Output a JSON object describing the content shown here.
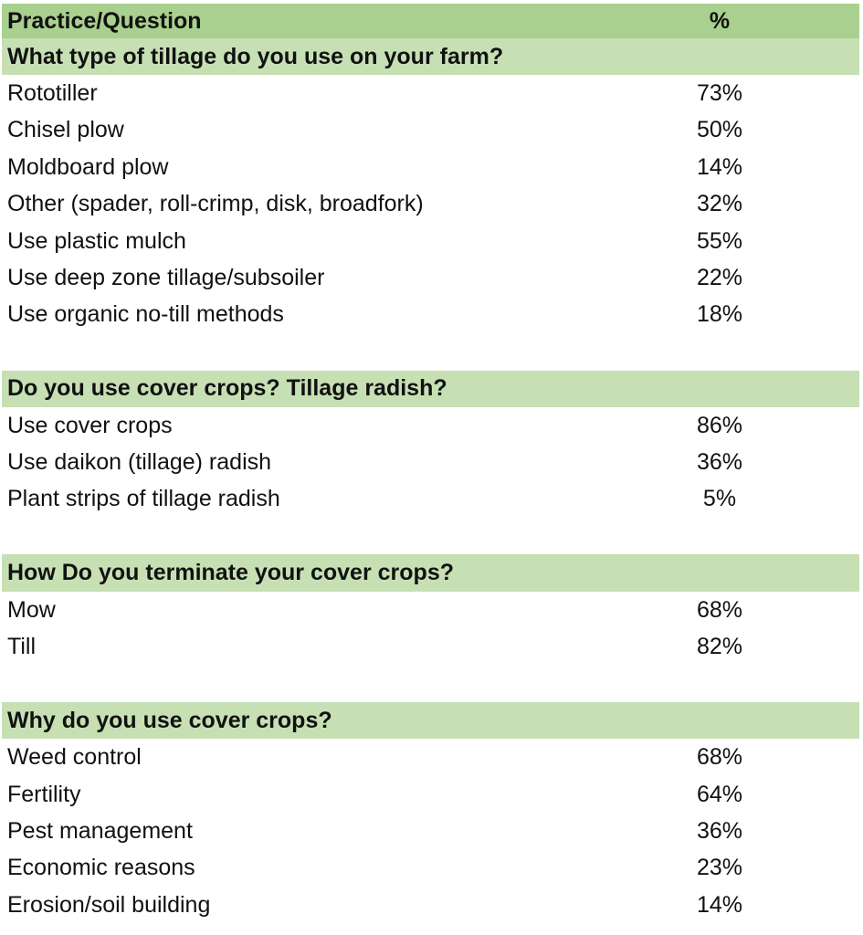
{
  "header": {
    "label": "Practice/Question",
    "value": "%"
  },
  "sections": [
    {
      "question": "What type of tillage do you use on your farm?",
      "rows": [
        {
          "label": "Rototiller",
          "value": "73%"
        },
        {
          "label": "Chisel plow",
          "value": "50%"
        },
        {
          "label": "Moldboard plow",
          "value": "14%"
        },
        {
          "label": "Other (spader, roll-crimp, disk, broadfork)",
          "value": "32%"
        },
        {
          "label": "Use plastic mulch",
          "value": "55%"
        },
        {
          "label": "Use deep zone tillage/subsoiler",
          "value": "22%"
        },
        {
          "label": "Use organic no-till methods",
          "value": "18%"
        }
      ]
    },
    {
      "question": "Do you use cover crops? Tillage radish?",
      "rows": [
        {
          "label": "Use cover crops",
          "value": "86%"
        },
        {
          "label": "Use daikon (tillage) radish",
          "value": "36%"
        },
        {
          "label": "Plant strips of tillage radish",
          "value": "5%"
        }
      ]
    },
    {
      "question": "How Do you terminate your cover crops?",
      "rows": [
        {
          "label": "Mow",
          "value": "68%"
        },
        {
          "label": "Till",
          "value": "82%"
        }
      ]
    },
    {
      "question": "Why do you use cover crops?",
      "rows": [
        {
          "label": "Weed control",
          "value": "68%"
        },
        {
          "label": "Fertility",
          "value": "64%"
        },
        {
          "label": "Pest management",
          "value": "36%"
        },
        {
          "label": "Economic reasons",
          "value": "23%"
        },
        {
          "label": "Erosion/soil building",
          "value": "14%"
        }
      ]
    }
  ]
}
